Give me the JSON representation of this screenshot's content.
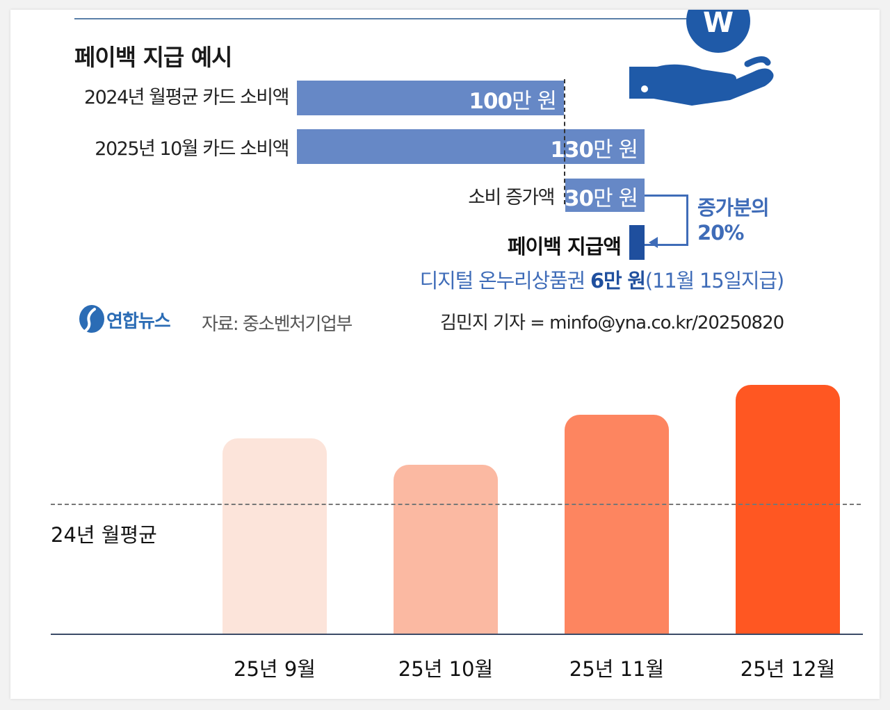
{
  "infographic": {
    "title": "페이백 지급 예시",
    "rows": [
      {
        "label": "2024년 월평균 카드 소비액",
        "amount": "100",
        "unit": "만 원",
        "value": 100
      },
      {
        "label": "2025년 10월 카드 소비액",
        "amount": "130",
        "unit": "만 원",
        "value": 130
      },
      {
        "label": "소비 증가액",
        "amount": "30",
        "unit": "만 원",
        "value": 30
      }
    ],
    "increase_note_line1": "증가분의",
    "increase_note_line2": "20%",
    "payback_label": "페이백 지급액",
    "payback_caption_prefix": "디지털 온누리상품권 ",
    "payback_caption_bold": "6만 원",
    "payback_caption_suffix": "(11월 15일지급)",
    "logo_text": "연합뉴스",
    "source": "자료: 중소벤처기업부",
    "byline": "김민지 기자 = minfo@yna.co.kr/20250820",
    "colors": {
      "bar": "#6688c6",
      "accent": "#3f6cb8",
      "payback": "#1f4f9e"
    }
  },
  "chart_data": {
    "type": "bar",
    "categories": [
      "25년 9월",
      "25년 10월",
      "25년 11월",
      "25년 12월"
    ],
    "values": [
      1.1,
      0.95,
      1.23,
      1.4
    ],
    "reference_line": {
      "label": "24년 월평균",
      "value": 0.73
    },
    "ylim": [
      0,
      1.4
    ],
    "colors": [
      "#fce4da",
      "#fbb9a2",
      "#fd8560",
      "#ff5722"
    ],
    "grid": false,
    "legend": "none"
  }
}
